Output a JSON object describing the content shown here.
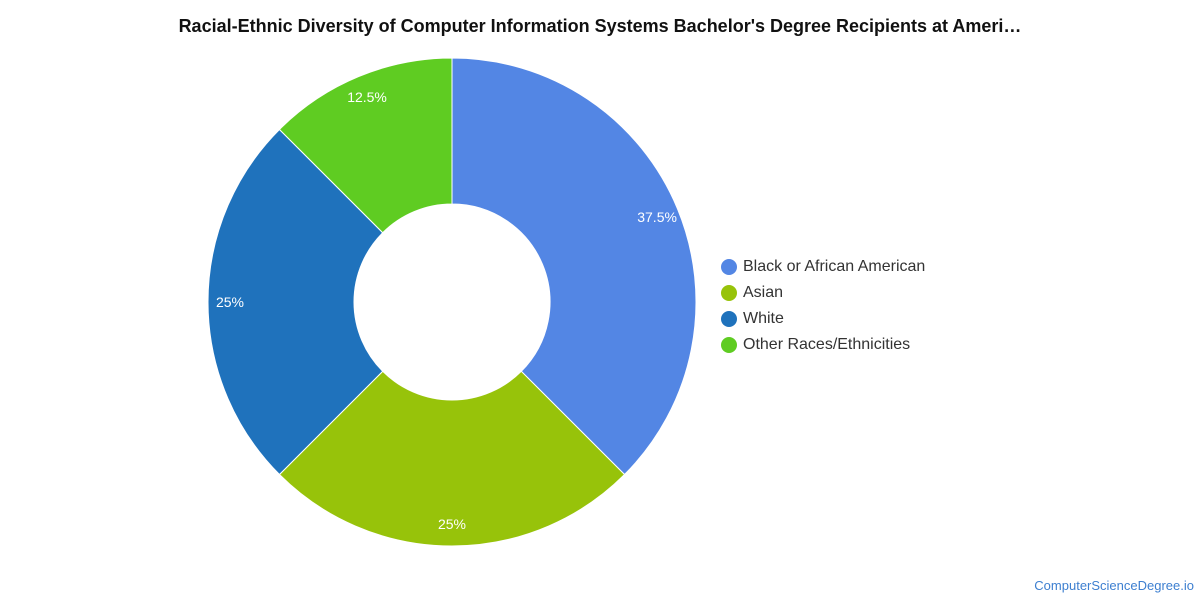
{
  "chart_data": {
    "type": "pie",
    "variant": "donut",
    "title": "Racial-Ethnic Diversity of Computer Information Systems Bachelor's Degree Recipients at Ameri…",
    "slices": [
      {
        "label": "Black or African American",
        "value": 37.5,
        "display": "37.5%",
        "color": "#5386e4"
      },
      {
        "label": "Asian",
        "value": 25,
        "display": "25%",
        "color": "#97c30a"
      },
      {
        "label": "White",
        "value": 25,
        "display": "25%",
        "color": "#1f72bc"
      },
      {
        "label": "Other Races/Ethnicities",
        "value": 12.5,
        "display": "12.5%",
        "color": "#5fcc22"
      }
    ],
    "legend_position": "right"
  },
  "footer": {
    "credit": "ComputerScienceDegree.io"
  }
}
